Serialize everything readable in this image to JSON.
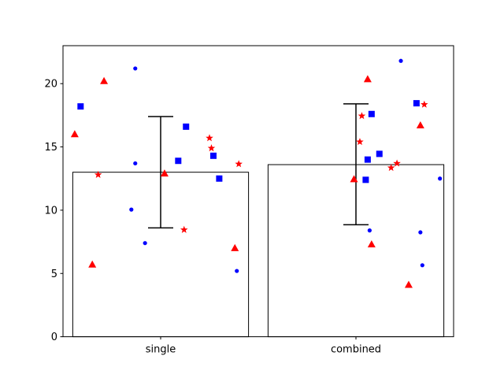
{
  "chart_data": {
    "type": "bar",
    "title": "",
    "xlabel": "",
    "ylabel": "",
    "categories": [
      "single",
      "combined"
    ],
    "values": [
      13.0,
      13.6
    ],
    "error": [
      {
        "low": 8.6,
        "high": 17.4
      },
      {
        "low": 8.85,
        "high": 18.4
      }
    ],
    "ylim": [
      0,
      23
    ],
    "yticks": [
      0,
      5,
      10,
      15,
      20
    ],
    "grid": false,
    "bar_fill": "#ffffff",
    "bar_edge": "#000000",
    "points": [
      {
        "category": "single",
        "marker": "circle",
        "color": "#0000ff",
        "values": [
          {
            "x": -0.13,
            "y": 13.7
          },
          {
            "x": -0.13,
            "y": 21.2
          },
          {
            "x": -0.15,
            "y": 10.05
          },
          {
            "x": -0.08,
            "y": 7.4
          },
          {
            "x": 0.39,
            "y": 5.2
          }
        ]
      },
      {
        "category": "single",
        "marker": "square",
        "color": "#0000ff",
        "values": [
          {
            "x": -0.41,
            "y": 18.2
          },
          {
            "x": 0.13,
            "y": 16.6
          },
          {
            "x": 0.09,
            "y": 13.9
          },
          {
            "x": 0.27,
            "y": 14.3
          },
          {
            "x": 0.3,
            "y": 12.5
          }
        ]
      },
      {
        "category": "single",
        "marker": "triangle",
        "color": "#ff0000",
        "values": [
          {
            "x": -0.44,
            "y": 16.0
          },
          {
            "x": -0.29,
            "y": 20.2
          },
          {
            "x": -0.35,
            "y": 5.7
          },
          {
            "x": 0.02,
            "y": 12.9
          },
          {
            "x": 0.38,
            "y": 7.0
          }
        ]
      },
      {
        "category": "single",
        "marker": "star",
        "color": "#ff0000",
        "values": [
          {
            "x": -0.32,
            "y": 12.8
          },
          {
            "x": 0.12,
            "y": 8.45
          },
          {
            "x": 0.25,
            "y": 15.7
          },
          {
            "x": 0.26,
            "y": 14.9
          },
          {
            "x": 0.4,
            "y": 13.65
          }
        ]
      },
      {
        "category": "combined",
        "marker": "circle",
        "color": "#0000ff",
        "values": [
          {
            "x": 1.23,
            "y": 21.8
          },
          {
            "x": 1.07,
            "y": 8.4
          },
          {
            "x": 1.43,
            "y": 12.5
          },
          {
            "x": 1.33,
            "y": 8.25
          },
          {
            "x": 1.34,
            "y": 5.65
          }
        ]
      },
      {
        "category": "combined",
        "marker": "square",
        "color": "#0000ff",
        "values": [
          {
            "x": 1.05,
            "y": 12.4
          },
          {
            "x": 1.06,
            "y": 14.0
          },
          {
            "x": 1.08,
            "y": 17.6
          },
          {
            "x": 1.12,
            "y": 14.45
          },
          {
            "x": 1.31,
            "y": 18.45
          }
        ]
      },
      {
        "category": "combined",
        "marker": "triangle",
        "color": "#ff0000",
        "values": [
          {
            "x": 0.99,
            "y": 12.45
          },
          {
            "x": 1.06,
            "y": 20.35
          },
          {
            "x": 1.08,
            "y": 7.3
          },
          {
            "x": 1.33,
            "y": 16.7
          },
          {
            "x": 1.27,
            "y": 4.1
          }
        ]
      },
      {
        "category": "combined",
        "marker": "star",
        "color": "#ff0000",
        "values": [
          {
            "x": 1.02,
            "y": 15.4
          },
          {
            "x": 1.03,
            "y": 17.45
          },
          {
            "x": 1.18,
            "y": 13.35
          },
          {
            "x": 1.21,
            "y": 13.7
          },
          {
            "x": 1.35,
            "y": 18.35
          }
        ]
      }
    ]
  }
}
